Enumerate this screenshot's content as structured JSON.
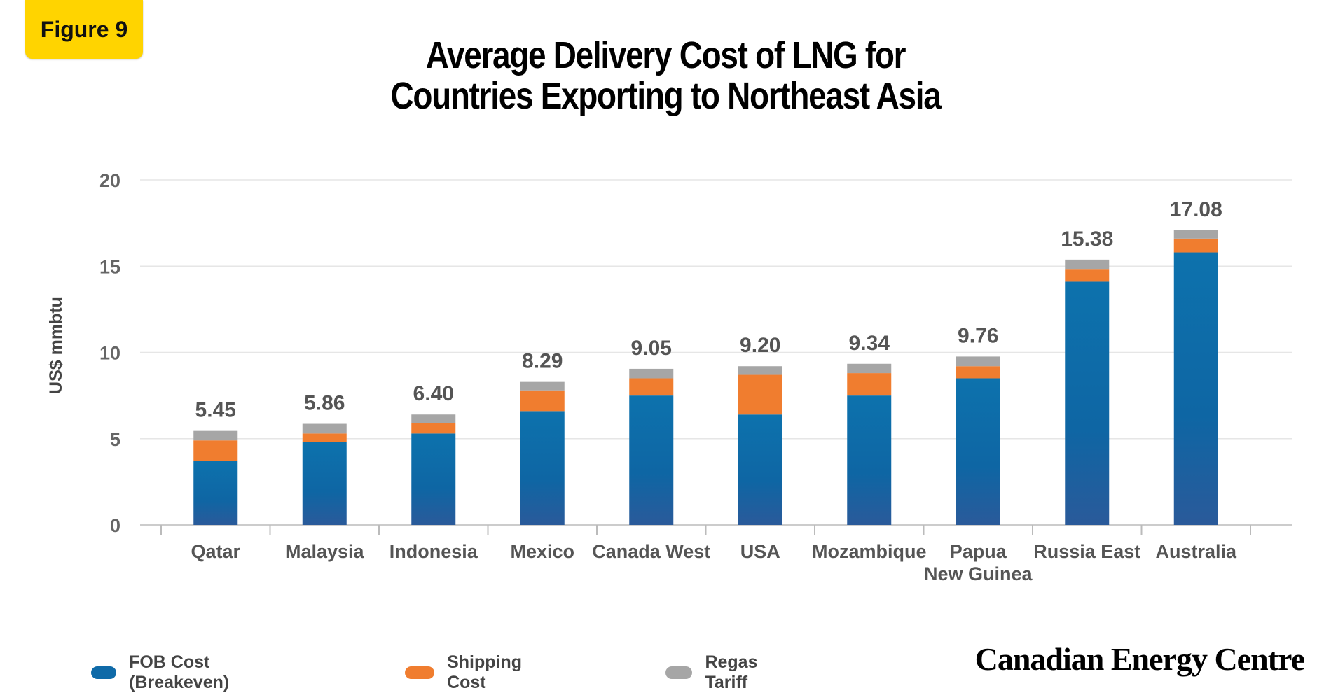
{
  "badge": {
    "label": "Figure 9"
  },
  "title": {
    "line1": "Average Delivery Cost of LNG for",
    "line2": "Countries Exporting to Northeast Asia"
  },
  "brand": {
    "name": "Canadian Energy Centre"
  },
  "chart_data": {
    "type": "bar",
    "stacked": true,
    "title": "Average Delivery Cost of LNG for Countries Exporting to Northeast Asia",
    "ylabel": "US$ mmbtu",
    "xlabel": "",
    "ylim": [
      0,
      20
    ],
    "yticks": [
      0,
      5,
      10,
      15,
      20
    ],
    "grid": true,
    "legend_position": "bottom",
    "categories": [
      "Qatar",
      "Malaysia",
      "Indonesia",
      "Mexico",
      "Canada West",
      "USA",
      "Mozambique",
      "Papua New Guinea",
      "Russia East",
      "Australia"
    ],
    "category_lines": [
      [
        "Qatar"
      ],
      [
        "Malaysia"
      ],
      [
        "Indonesia"
      ],
      [
        "Mexico"
      ],
      [
        "Canada West"
      ],
      [
        "USA"
      ],
      [
        "Mozambique"
      ],
      [
        "Papua",
        "New Guinea"
      ],
      [
        "Russia East"
      ],
      [
        "Australia"
      ]
    ],
    "totals": [
      "5.45",
      "5.86",
      "6.40",
      "8.29",
      "9.05",
      "9.20",
      "9.34",
      "9.76",
      "15.38",
      "17.08"
    ],
    "series": [
      {
        "name": "FOB Cost (Breakeven)",
        "color": "#0f6aa8",
        "values": [
          3.7,
          4.8,
          5.3,
          6.6,
          7.5,
          6.4,
          7.5,
          8.5,
          14.1,
          15.8
        ]
      },
      {
        "name": "Shipping Cost",
        "color": "#f07d2f",
        "values": [
          1.2,
          0.5,
          0.6,
          1.2,
          1.0,
          2.3,
          1.3,
          0.7,
          0.7,
          0.8
        ]
      },
      {
        "name": "Regas Tariff",
        "color": "#a6a6a6",
        "values": [
          0.55,
          0.56,
          0.5,
          0.49,
          0.55,
          0.5,
          0.54,
          0.56,
          0.58,
          0.48
        ]
      }
    ]
  }
}
